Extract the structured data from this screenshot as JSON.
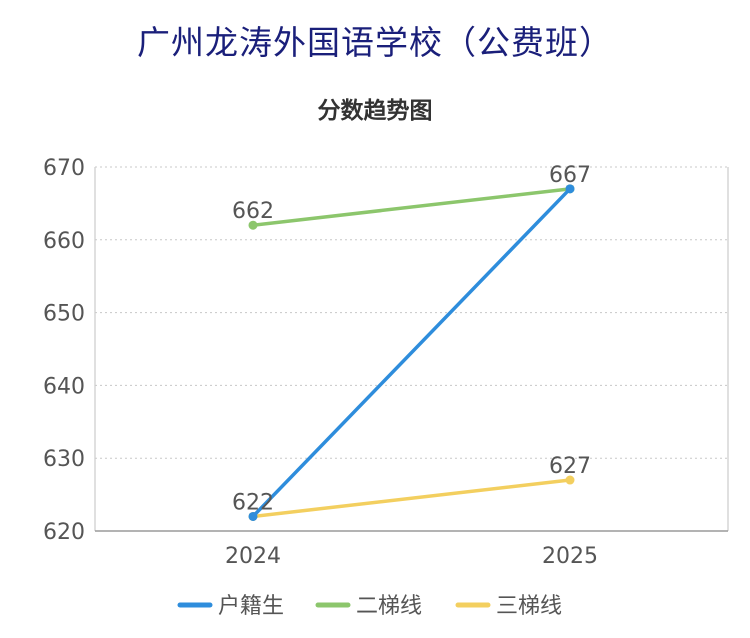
{
  "header": {
    "title": "广州龙涛外国语学校（公费班）"
  },
  "chart_data": {
    "type": "line",
    "title": "分数趋势图",
    "xlabel": "",
    "ylabel": "",
    "x": [
      "2024",
      "2025"
    ],
    "ylim": [
      620,
      670
    ],
    "yticks": [
      620,
      630,
      640,
      650,
      660,
      670
    ],
    "grid": true,
    "legend_position": "bottom",
    "series": [
      {
        "name": "户籍生",
        "values": [
          622,
          667
        ],
        "color": "#2e8ddc",
        "show_labels": false
      },
      {
        "name": "二梯线",
        "values": [
          662,
          667
        ],
        "color": "#8cc66c",
        "show_labels": true
      },
      {
        "name": "三梯线",
        "values": [
          622,
          627
        ],
        "color": "#f3cf5f",
        "show_labels": true
      }
    ]
  }
}
